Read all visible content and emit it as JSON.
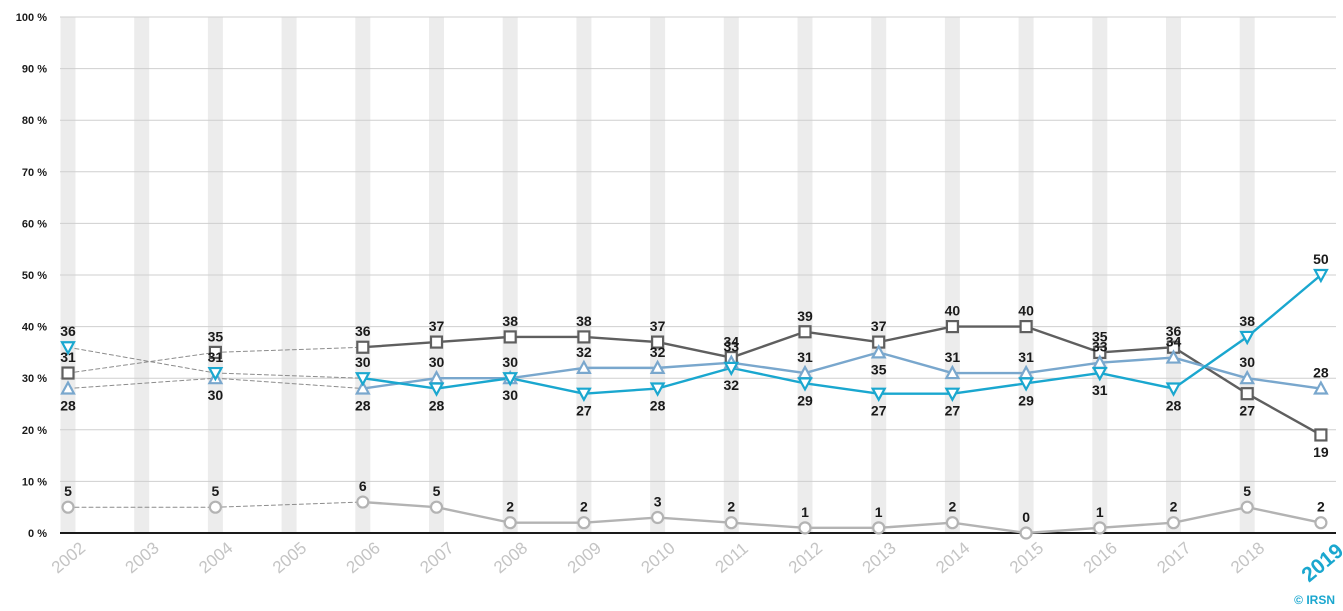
{
  "chart_data": {
    "type": "line",
    "credit": "© IRSN",
    "x": [
      "2002",
      "2003",
      "2004",
      "2005",
      "2006",
      "2007",
      "2008",
      "2009",
      "2010",
      "2011",
      "2012",
      "2013",
      "2014",
      "2015",
      "2016",
      "2017",
      "2018",
      "2019"
    ],
    "highlight_x": "2019",
    "ylim": [
      0,
      100
    ],
    "yticks": [
      "0 %",
      "10 %",
      "20 %",
      "30 %",
      "40 %",
      "50 %",
      "60 %",
      "70 %",
      "80 %",
      "90 %",
      "100 %"
    ],
    "grid": true,
    "dashed_connection_before": "2006",
    "series": [
      {
        "id": "dark-grey-square",
        "marker": "square",
        "color": "#5f5f5f",
        "values": [
          31,
          null,
          35,
          null,
          36,
          37,
          38,
          38,
          37,
          34,
          39,
          37,
          40,
          40,
          35,
          36,
          27,
          19
        ],
        "label_pos": [
          "above",
          null,
          "above",
          null,
          "above",
          "above",
          "above",
          "above",
          "above",
          "above",
          "above",
          "above",
          "above",
          "above",
          "above",
          "above",
          "below",
          "below"
        ]
      },
      {
        "id": "light-blue-triangle-up",
        "marker": "triangle-up",
        "color": "#79a7cd",
        "values": [
          28,
          null,
          30,
          null,
          28,
          30,
          30,
          32,
          32,
          33,
          31,
          35,
          31,
          31,
          33,
          34,
          30,
          28
        ],
        "label_pos": [
          "below",
          null,
          "below",
          null,
          "below",
          "above",
          "above",
          "above",
          "above",
          "above",
          "above",
          "below",
          "above",
          "above",
          "above",
          "above",
          "above",
          "above"
        ]
      },
      {
        "id": "cyan-triangle-down",
        "marker": "triangle-down",
        "color": "#1aa7cf",
        "values": [
          36,
          null,
          31,
          null,
          30,
          28,
          30,
          27,
          28,
          32,
          29,
          27,
          27,
          29,
          31,
          28,
          38,
          50
        ],
        "label_pos": [
          "above",
          null,
          "above",
          null,
          "above",
          "below",
          "below",
          "below",
          "below",
          "below",
          "below",
          "below",
          "below",
          "below",
          "below",
          "below",
          "above",
          "above"
        ]
      },
      {
        "id": "light-grey-circle",
        "marker": "circle",
        "color": "#b3b3b3",
        "values": [
          5,
          null,
          5,
          null,
          6,
          5,
          2,
          2,
          3,
          2,
          1,
          1,
          2,
          0,
          1,
          2,
          5,
          2
        ],
        "label_pos": [
          "above",
          null,
          "above",
          null,
          "above",
          "above",
          "above",
          "above",
          "above",
          "above",
          "above",
          "above",
          "above",
          "above",
          "above",
          "above",
          "above",
          "above"
        ]
      }
    ]
  }
}
